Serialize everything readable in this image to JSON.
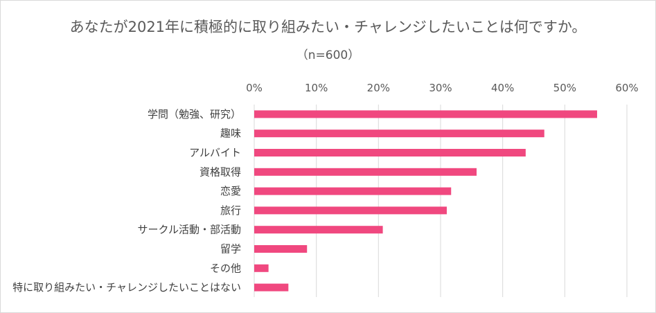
{
  "chart_data": {
    "type": "bar",
    "orientation": "horizontal",
    "title": "あなたが2021年に積極的に取り組みたい・チャレンジしたいことは何ですか。",
    "subtitle": "（n=600）",
    "categories": [
      "学問（勉強、研究）",
      "趣味",
      "アルバイト",
      "資格取得",
      "恋愛",
      "旅行",
      "サークル活動・部活動",
      "留学",
      "その他",
      "特に取り組みたい・チャレンジしたいことはない"
    ],
    "values": [
      55.2,
      46.7,
      43.7,
      35.8,
      31.7,
      31.0,
      20.7,
      8.5,
      2.3,
      5.5
    ],
    "xlim": [
      0,
      60
    ],
    "xticks": [
      "0%",
      "10%",
      "20%",
      "30%",
      "40%",
      "50%",
      "60%"
    ],
    "xaxis_position": "top",
    "grid": true,
    "bar_color": "#f0487f"
  }
}
